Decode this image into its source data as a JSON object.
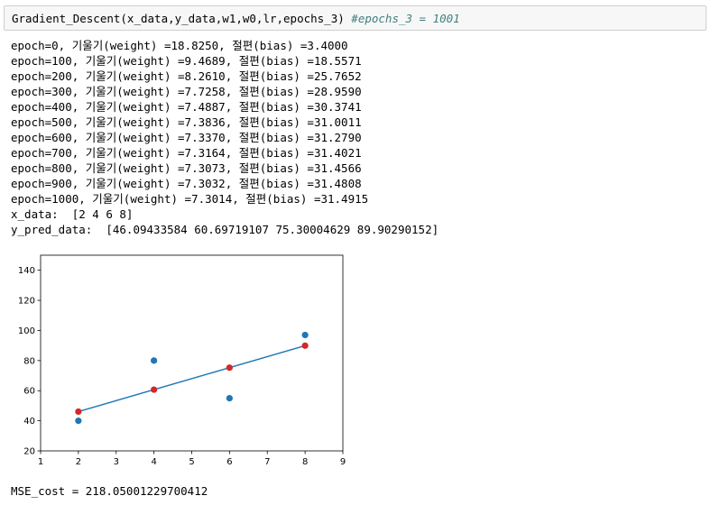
{
  "input_cell": {
    "code": "Gradient_Descent(x_data,y_data,w1,w0,lr,epochs_3) ",
    "comment": "#epochs_3 = 1001"
  },
  "output_lines": [
    "epoch=0, 기울기(weight) =18.8250, 절편(bias) =3.4000",
    "epoch=100, 기울기(weight) =9.4689, 절편(bias) =18.5571",
    "epoch=200, 기울기(weight) =8.2610, 절편(bias) =25.7652",
    "epoch=300, 기울기(weight) =7.7258, 절편(bias) =28.9590",
    "epoch=400, 기울기(weight) =7.4887, 절편(bias) =30.3741",
    "epoch=500, 기울기(weight) =7.3836, 절편(bias) =31.0011",
    "epoch=600, 기울기(weight) =7.3370, 절편(bias) =31.2790",
    "epoch=700, 기울기(weight) =7.3164, 절편(bias) =31.4021",
    "epoch=800, 기울기(weight) =7.3073, 절편(bias) =31.4566",
    "epoch=900, 기울기(weight) =7.3032, 절편(bias) =31.4808",
    "epoch=1000, 기울기(weight) =7.3014, 절편(bias) =31.4915",
    "x_data:  [2 4 6 8]",
    "y_pred_data:  [46.09433584 60.69719107 75.30004629 89.90290152]"
  ],
  "mse_line": "MSE_cost = 218.05001229700412",
  "chart_data": {
    "type": "scatter",
    "xlim": [
      1,
      9
    ],
    "ylim": [
      20,
      150
    ],
    "x_ticks": [
      1,
      2,
      3,
      4,
      5,
      6,
      7,
      8,
      9
    ],
    "y_ticks": [
      20,
      40,
      60,
      80,
      100,
      120,
      140
    ],
    "grid": false,
    "series": [
      {
        "kind": "scatter",
        "color": "#1f77b4",
        "x": [
          2,
          4,
          6,
          8
        ],
        "y": [
          40,
          80,
          55,
          97
        ]
      },
      {
        "kind": "line",
        "color": "#1f77b4",
        "x": [
          2,
          4,
          6,
          8
        ],
        "y": [
          46.09433584,
          60.69719107,
          75.30004629,
          89.90290152
        ]
      },
      {
        "kind": "scatter",
        "color": "#d62728",
        "x": [
          2,
          4,
          6,
          8
        ],
        "y": [
          46.09433584,
          60.69719107,
          75.30004629,
          89.90290152
        ]
      }
    ]
  }
}
